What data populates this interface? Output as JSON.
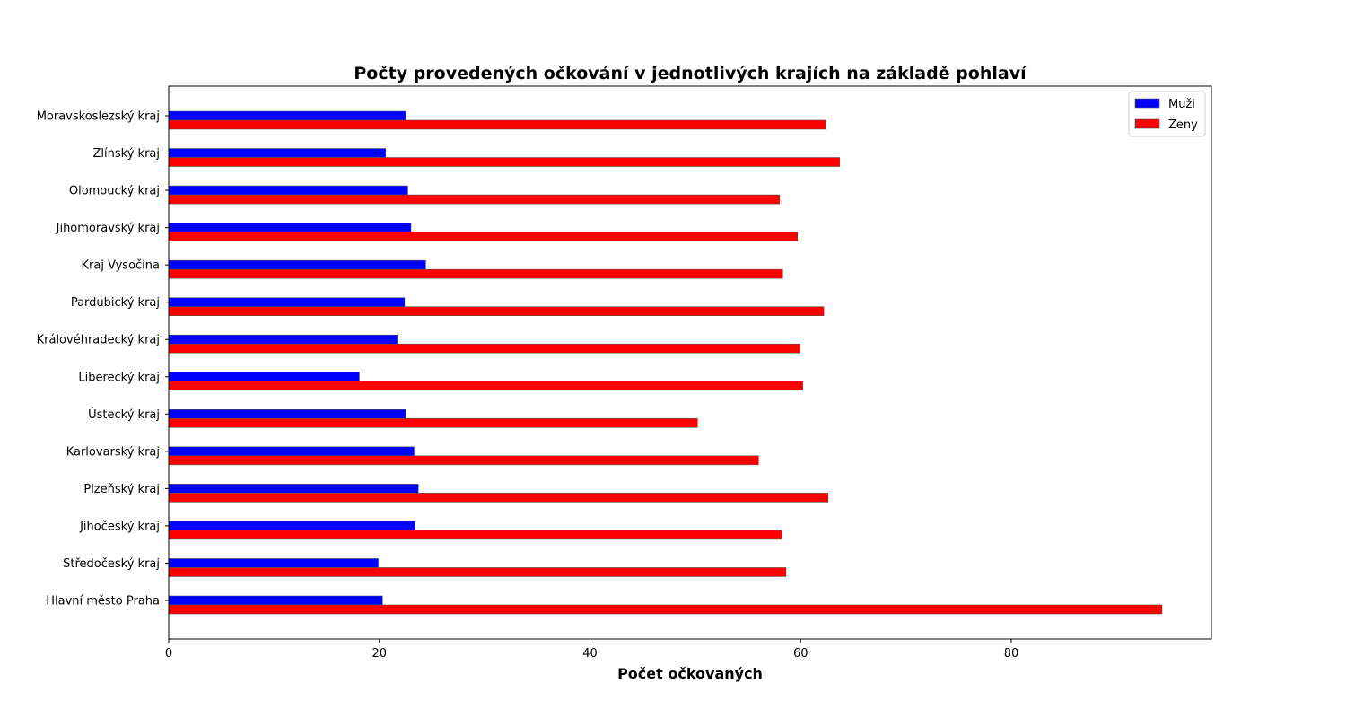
{
  "chart_data": {
    "type": "bar",
    "orientation": "horizontal",
    "title": "Počty provedených očkování v jednotlivých krajích na základě pohlaví",
    "xlabel": "Počet očkovaných",
    "ylabel": "",
    "xlim": [
      0,
      99
    ],
    "xticks": [
      0,
      20,
      40,
      60,
      80
    ],
    "grid": false,
    "legend_position": "top-right",
    "categories": [
      "Hlavní město Praha",
      "Středočeský kraj",
      "Jihočeský kraj",
      "Plzeňský kraj",
      "Karlovarský kraj",
      "Ústecký kraj",
      "Liberecký kraj",
      "Královéhradecký kraj",
      "Pardubický kraj",
      "Kraj Vysočina",
      "Jihomoravský kraj",
      "Olomoucký kraj",
      "Zlínský kraj",
      "Moravskoslezský kraj"
    ],
    "series": [
      {
        "name": "Muži",
        "color": "#0000ff",
        "values": [
          20.3,
          19.9,
          23.4,
          23.7,
          23.3,
          22.5,
          18.1,
          21.7,
          22.4,
          24.4,
          23.0,
          22.7,
          20.6,
          22.5
        ]
      },
      {
        "name": "Ženy",
        "color": "#ff0000",
        "values": [
          94.3,
          58.6,
          58.2,
          62.6,
          56.0,
          50.2,
          60.2,
          59.9,
          62.2,
          58.3,
          59.7,
          58.0,
          63.7,
          62.4
        ]
      }
    ]
  }
}
